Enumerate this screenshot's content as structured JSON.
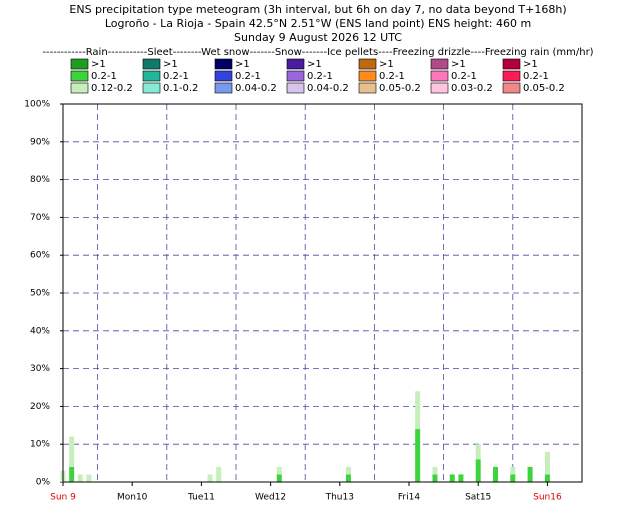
{
  "chart_data": {
    "type": "bar",
    "title": "ENS precipitation type meteogram (3h interval, but 6h on day 7, no data beyond T+168h)",
    "subtitle": "Logroño - La Rioja - Spain 42.5°N 2.51°W (ENS land point) ENS height: 460 m",
    "date": "Sunday  9 August 2026 12 UTC",
    "legend_header": "------------Rain-----------Sleet--------Wet snow-------Snow-------Ice pellets----Freezing drizzle----Freezing rain (mm/hr)",
    "legend_items": [
      [
        {
          "label": ">1",
          "color": "#1e9e1e"
        },
        {
          "label": "0.2-1",
          "color": "#3cd43c"
        },
        {
          "label": "0.12-0.2",
          "color": "#c8eebc"
        }
      ],
      [
        {
          "label": ">1",
          "color": "#11786a"
        },
        {
          "label": "0.2-1",
          "color": "#22b59b"
        },
        {
          "label": "0.1-0.2",
          "color": "#84ead4"
        }
      ],
      [
        {
          "label": ">1",
          "color": "#000066"
        },
        {
          "label": "0.2-1",
          "color": "#3344dd"
        },
        {
          "label": "0.04-0.2",
          "color": "#7799ee"
        }
      ],
      [
        {
          "label": ">1",
          "color": "#4b1ba0"
        },
        {
          "label": "0.2-1",
          "color": "#9a66dd"
        },
        {
          "label": "0.04-0.2",
          "color": "#d6c4ee"
        }
      ],
      [
        {
          "label": ">1",
          "color": "#c0680e"
        },
        {
          "label": "0.2-1",
          "color": "#ff8c1a"
        },
        {
          "label": "0.05-0.2",
          "color": "#e8c090"
        }
      ],
      [
        {
          "label": ">1",
          "color": "#b04a8a"
        },
        {
          "label": "0.2-1",
          "color": "#ff77bb"
        },
        {
          "label": "0.03-0.2",
          "color": "#ffc4e0"
        }
      ],
      [
        {
          "label": ">1",
          "color": "#b3003c"
        },
        {
          "label": "0.2-1",
          "color": "#ff1a55"
        },
        {
          "label": "0.05-0.2",
          "color": "#f08888"
        }
      ]
    ],
    "x": [
      0,
      3,
      6,
      9,
      51,
      54,
      75,
      99,
      123,
      129,
      135,
      138,
      144,
      150,
      156,
      162,
      168
    ],
    "series": [
      {
        "name": ">1",
        "color": "#1e9e1e",
        "values": [
          0,
          0,
          0,
          0,
          0,
          0,
          0,
          0,
          0,
          0,
          0,
          0,
          0,
          0,
          0,
          0,
          0
        ]
      },
      {
        "name": "0.2-1",
        "color": "#3cd43c",
        "values": [
          0,
          4,
          0,
          0,
          0,
          0,
          2,
          2,
          14,
          2,
          2,
          2,
          6,
          4,
          2,
          4,
          2
        ]
      },
      {
        "name": "0.12-0.2",
        "color": "#c8eebc",
        "values": [
          3,
          8,
          2,
          2,
          2,
          4,
          2,
          2,
          10,
          2,
          0,
          0,
          4,
          0,
          2,
          0,
          6
        ]
      }
    ],
    "xlim": [
      0,
      180
    ],
    "xticks": [
      {
        "value": 0,
        "label": "Sun 9"
      },
      {
        "value": 24,
        "label": "Mon10"
      },
      {
        "value": 48,
        "label": "Tue11"
      },
      {
        "value": 72,
        "label": "Wed12"
      },
      {
        "value": 96,
        "label": "Thu13"
      },
      {
        "value": 120,
        "label": "Fri14"
      },
      {
        "value": 144,
        "label": "Sat15"
      },
      {
        "value": 168,
        "label": "Sun16"
      }
    ],
    "xtick_colors": [
      "#e00000",
      "#000",
      "#000",
      "#000",
      "#000",
      "#000",
      "#000",
      "#e00000"
    ],
    "ylim": [
      0,
      100
    ],
    "yticks": [
      {
        "value": 0,
        "label": "0%"
      },
      {
        "value": 10,
        "label": "10%"
      },
      {
        "value": 20,
        "label": "20%"
      },
      {
        "value": 30,
        "label": "30%"
      },
      {
        "value": 40,
        "label": "40%"
      },
      {
        "value": 50,
        "label": "50%"
      },
      {
        "value": 60,
        "label": "60%"
      },
      {
        "value": 70,
        "label": "70%"
      },
      {
        "value": 80,
        "label": "80%"
      },
      {
        "value": 90,
        "label": "90%"
      },
      {
        "value": 100,
        "label": "100%"
      }
    ],
    "grid": true
  }
}
